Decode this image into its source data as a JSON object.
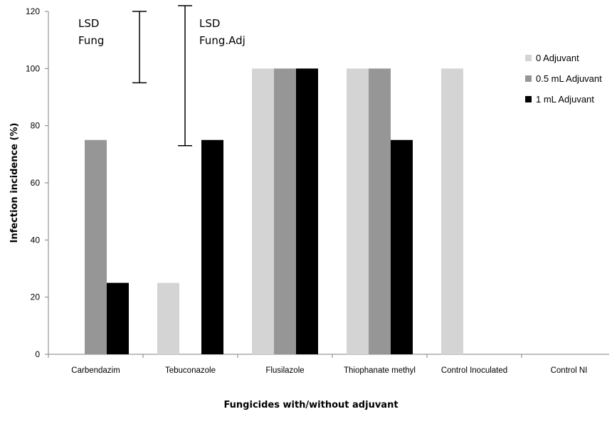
{
  "chart_data": {
    "type": "bar",
    "title": "",
    "xlabel": "Fungicides with/without adjuvant",
    "ylabel": "Infection incidence (%)",
    "ylim": [
      0,
      120
    ],
    "yticks": [
      0,
      20,
      40,
      60,
      80,
      100,
      120
    ],
    "grid": false,
    "legend_position": "right",
    "categories": [
      "Carbendazim",
      "Tebuconazole",
      "Flusilazole",
      "Thiophanate methyl",
      "Control Inoculated",
      "Control NI"
    ],
    "series": [
      {
        "name": "0 Adjuvant",
        "color": "#d4d4d4",
        "values": [
          0,
          25,
          100,
          100,
          100,
          0
        ]
      },
      {
        "name": "0.5 mL Adjuvant",
        "color": "#969696",
        "values": [
          75,
          0,
          100,
          100,
          0,
          0
        ]
      },
      {
        "name": "1 mL Adjuvant",
        "color": "#000000",
        "values": [
          25,
          75,
          100,
          75,
          0,
          0
        ]
      }
    ],
    "lsd_bars": [
      {
        "label_lines": [
          "LSD",
          "Fung"
        ],
        "low": 95,
        "high": 120
      },
      {
        "label_lines": [
          "LSD",
          "Fung.Adj"
        ],
        "low": 73,
        "high": 122
      }
    ]
  }
}
